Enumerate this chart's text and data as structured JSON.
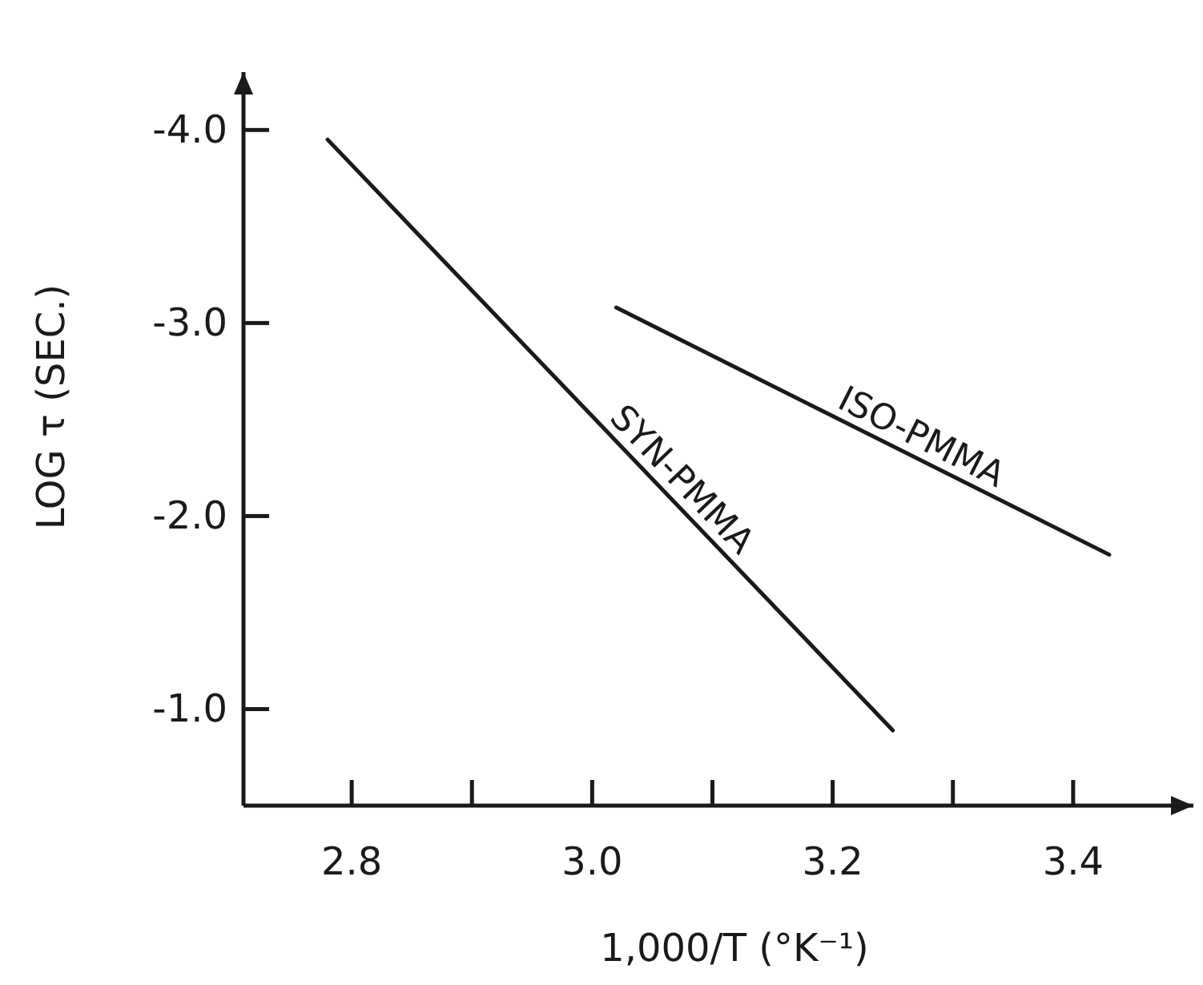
{
  "chart_data": {
    "type": "line",
    "xlabel": "1,000/T (°K⁻¹)",
    "ylabel": "LOG τ (SEC.)",
    "xlim": [
      2.71,
      3.5
    ],
    "ylim": [
      -0.5,
      -4.3
    ],
    "xticks": [
      {
        "value": 2.8,
        "label": "2.8"
      },
      {
        "value": 2.9,
        "label": null
      },
      {
        "value": 3.0,
        "label": "3.0"
      },
      {
        "value": 3.1,
        "label": null
      },
      {
        "value": 3.2,
        "label": "3.2"
      },
      {
        "value": 3.3,
        "label": null
      },
      {
        "value": 3.4,
        "label": "3.4"
      }
    ],
    "yticks": [
      {
        "value": -4,
        "label": "-4.0"
      },
      {
        "value": -3,
        "label": "-3.0"
      },
      {
        "value": -2,
        "label": "-2.0"
      },
      {
        "value": -1,
        "label": "-1.0"
      }
    ],
    "marker": "none",
    "line_style": "solid",
    "series": [
      {
        "name": "SYN-PMMA",
        "color": "#1a1a1a",
        "x": [
          2.78,
          3.25
        ],
        "values": [
          -3.95,
          -0.89
        ]
      },
      {
        "name": "ISO-PMMA",
        "color": "#1a1a1a",
        "x": [
          3.02,
          3.43
        ],
        "values": [
          -3.08,
          -1.8
        ]
      }
    ]
  }
}
